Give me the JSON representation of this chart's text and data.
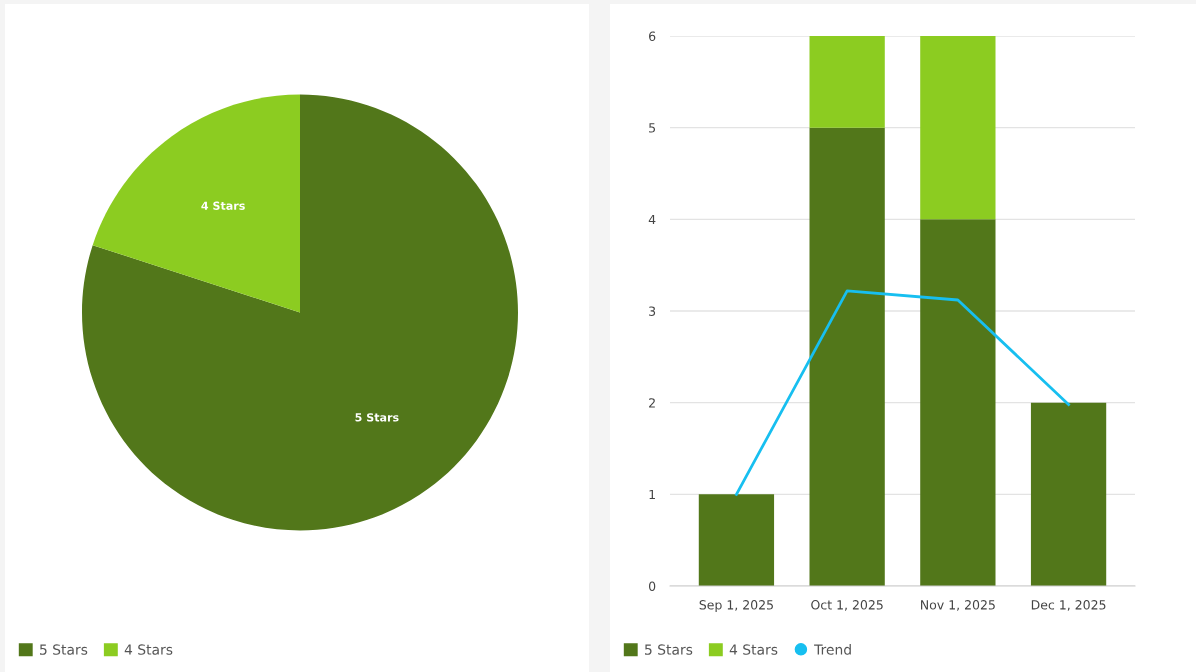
{
  "chart_data": [
    {
      "type": "pie",
      "categories": [
        "5 Stars",
        "4 Stars"
      ],
      "values": [
        80,
        20
      ],
      "colors": [
        "#52771a",
        "#8ccc21"
      ],
      "legend": "bottom left"
    },
    {
      "type": "bar",
      "stacked": true,
      "categories": [
        "Sep 1, 2025",
        "Oct 1, 2025",
        "Nov 1, 2025",
        "Dec 1, 2025"
      ],
      "series": [
        {
          "name": "5 Stars",
          "color": "#52771a",
          "values": [
            1,
            5,
            4,
            2
          ]
        },
        {
          "name": "4 Stars",
          "color": "#8ccc21",
          "values": [
            0,
            1,
            2,
            0
          ]
        },
        {
          "name": "Trend",
          "type": "line",
          "color": "#17bff0",
          "marker": "none",
          "values": [
            1,
            3.22,
            3.12,
            1.98
          ]
        }
      ],
      "ylim": [
        0,
        6
      ],
      "yticks": [
        0,
        1,
        2,
        3,
        4,
        5,
        6
      ],
      "grid": "y",
      "legend": "bottom left"
    }
  ]
}
